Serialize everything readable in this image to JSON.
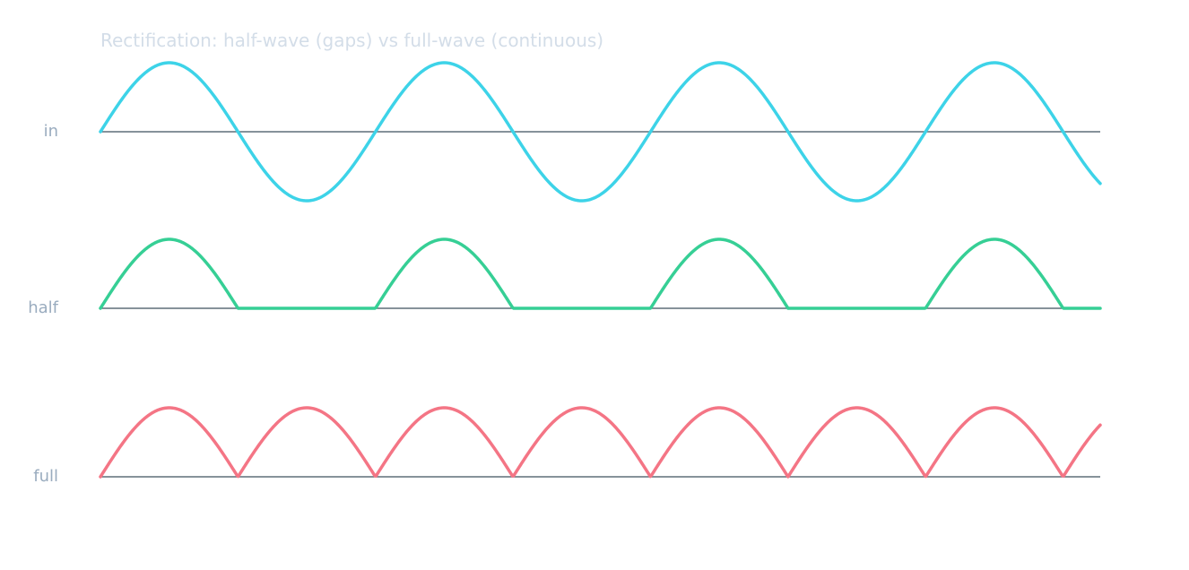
{
  "chart_data": {
    "type": "line",
    "title": "Rectification: half-wave (gaps) vs full-wave (continuous)",
    "x": {
      "range": [
        0,
        7.27
      ],
      "unit_period": 2
    },
    "series": [
      {
        "name": "in",
        "kind": "sine",
        "amplitude": 1,
        "color": "#3dd3e8"
      },
      {
        "name": "half",
        "kind": "half-wave",
        "amplitude": 1,
        "color": "#36cf95"
      },
      {
        "name": "full",
        "kind": "full-wave",
        "amplitude": 1,
        "color": "#f47585"
      }
    ],
    "grid": false,
    "legend": "row labels at left"
  }
}
